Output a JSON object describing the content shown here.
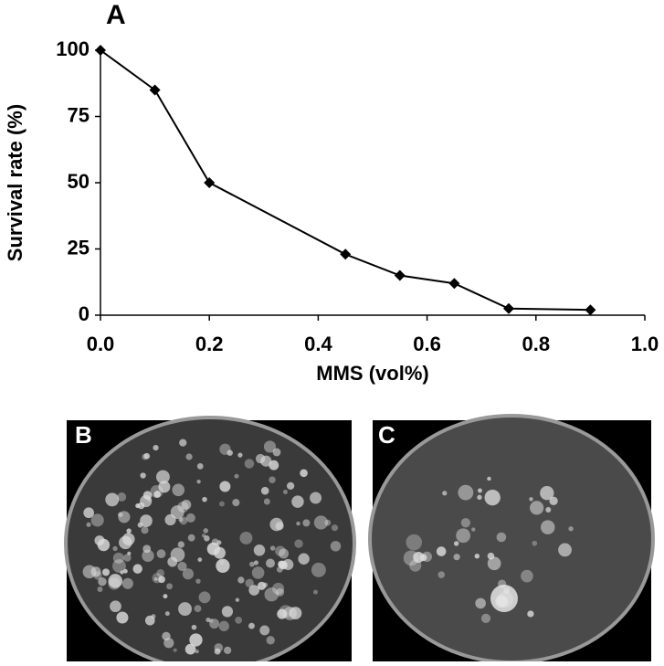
{
  "chart_data": {
    "type": "line",
    "title": "A",
    "x_label": "MMS (vol%)",
    "y_label": "Survival rate (%)",
    "x": [
      0,
      0.1,
      0.2,
      0.45,
      0.55,
      0.65,
      0.75,
      0.9
    ],
    "series": [
      {
        "color": "#000000",
        "values": [
          100,
          85,
          50,
          23,
          15,
          12,
          2.5,
          2
        ]
      }
    ],
    "xlim": [
      0,
      1
    ],
    "xticks": [
      {
        "value": 0,
        "label": "0.0"
      },
      0.2,
      0.4,
      0.6,
      0.8,
      {
        "value": 1,
        "label": "1.0"
      }
    ],
    "ylim": [
      0,
      100
    ],
    "yticks": [
      0,
      25,
      50,
      75,
      100
    ],
    "grid": false
  },
  "panels": [
    {
      "label": "B"
    },
    {
      "label": "C"
    }
  ]
}
